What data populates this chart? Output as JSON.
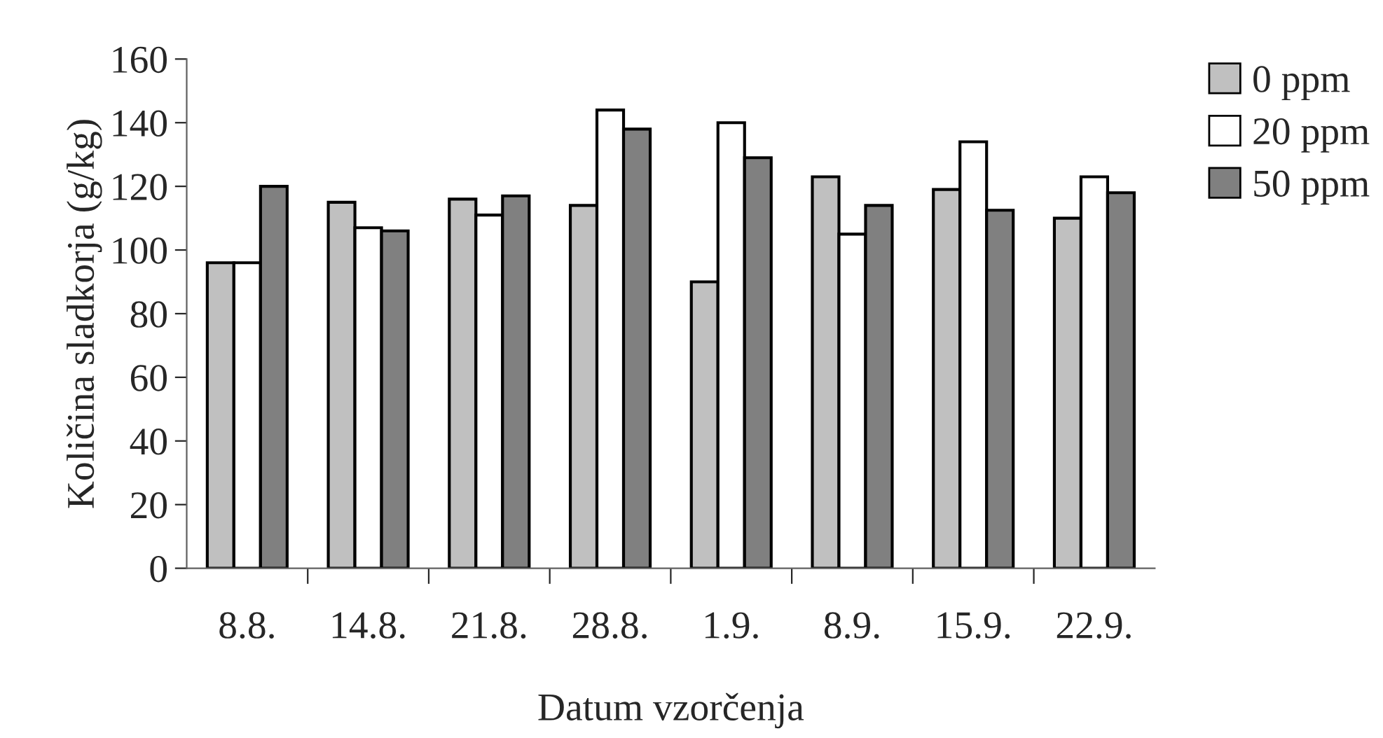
{
  "chart_data": {
    "type": "bar",
    "xlabel": "Datum vzorčenja",
    "ylabel": "Količina sladkorja (g/kg)",
    "categories": [
      "8.8.",
      "14.8.",
      "21.8.",
      "28.8.",
      "1.9.",
      "8.9.",
      "15.9.",
      "22.9."
    ],
    "series": [
      {
        "name": "0 ppm",
        "color": "#c0c0c0",
        "values": [
          96,
          115,
          116,
          114,
          90,
          123,
          119,
          110
        ]
      },
      {
        "name": "20 ppm",
        "color": "#ffffff",
        "values": [
          96,
          107,
          111,
          144,
          140,
          105,
          134,
          123
        ]
      },
      {
        "name": "50 ppm",
        "color": "#808080",
        "values": [
          120,
          106,
          117,
          138,
          129,
          114,
          112.5,
          118
        ]
      }
    ],
    "ylim": [
      0,
      160
    ],
    "yticks": [
      0,
      20,
      40,
      60,
      80,
      100,
      120,
      140,
      160
    ],
    "legend": "top right",
    "grid": false
  }
}
